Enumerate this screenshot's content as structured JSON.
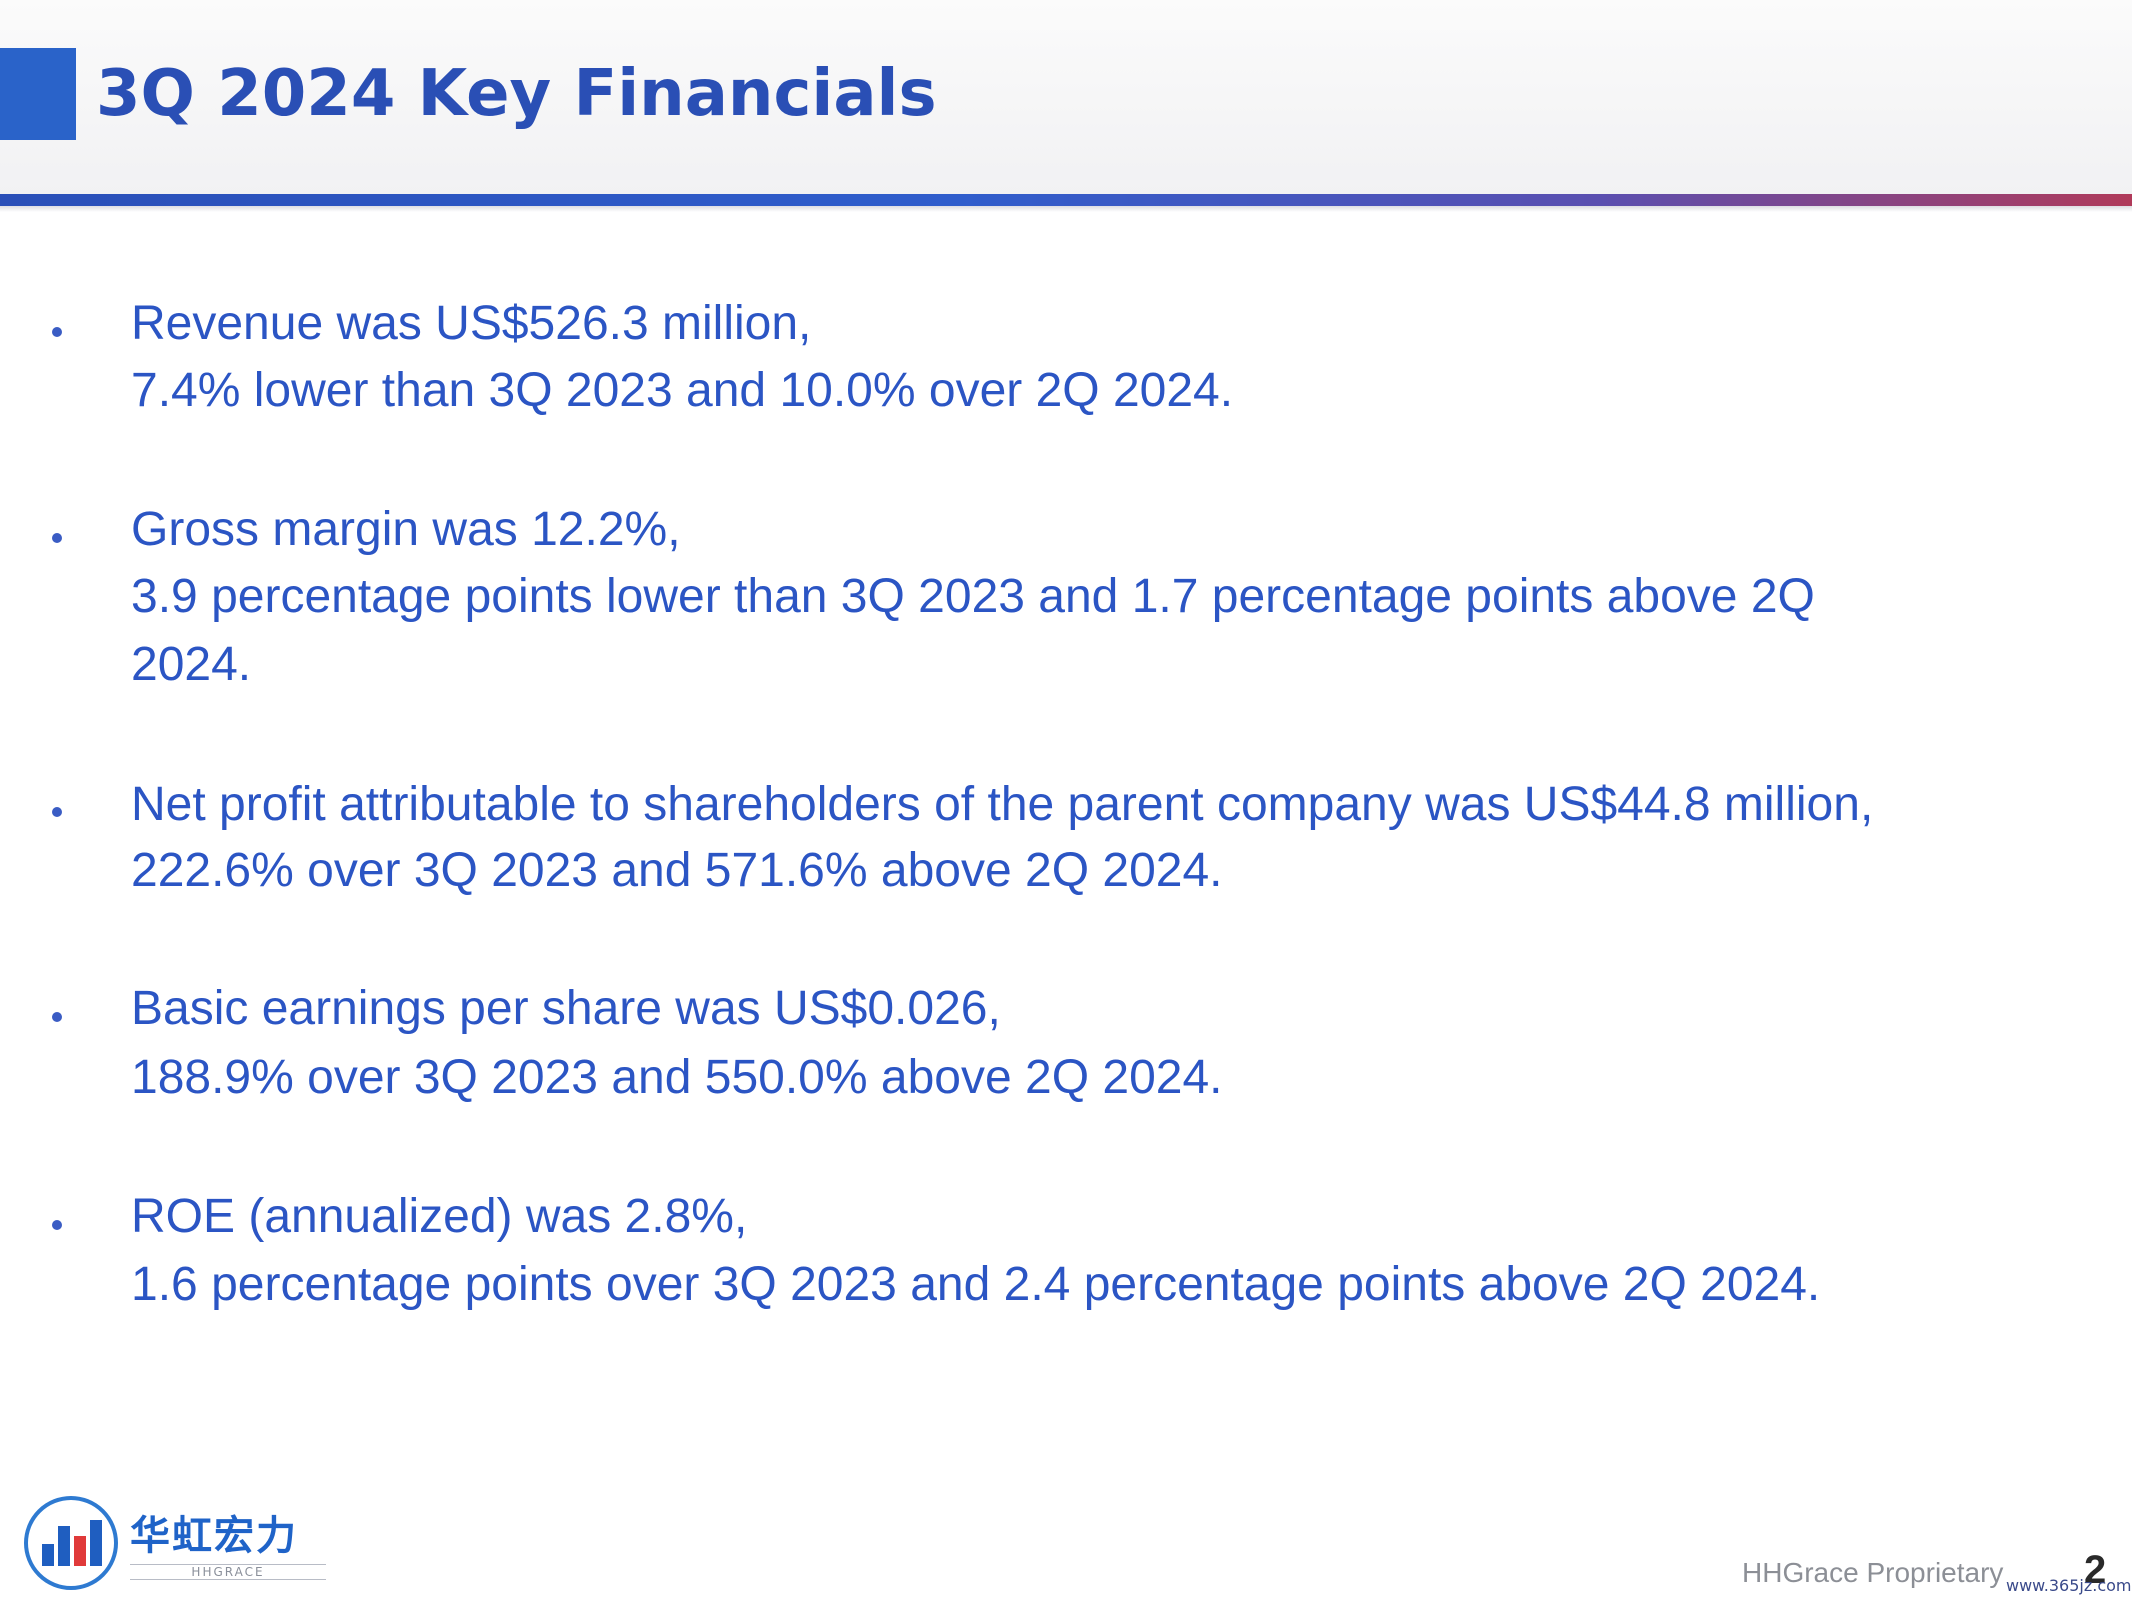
{
  "header": {
    "title": "3Q 2024 Key Financials"
  },
  "bullets": [
    {
      "lines": [
        "Revenue was US$526.3 million,",
        "7.4% lower than 3Q 2023 and 10.0% over 2Q 2024."
      ]
    },
    {
      "lines": [
        "Gross margin was 12.2%,",
        "3.9 percentage points lower than 3Q 2023 and 1.7 percentage points above 2Q",
        "2024."
      ]
    },
    {
      "lines": [
        "Net profit attributable to shareholders of the parent company was US$44.8 million,",
        "222.6% over 3Q 2023 and 571.6% above 2Q 2024."
      ]
    },
    {
      "lines": [
        "Basic earnings per share was US$0.026,",
        "188.9% over 3Q 2023 and 550.0% above 2Q 2024."
      ]
    },
    {
      "lines": [
        "ROE (annualized) was 2.8%,",
        "1.6 percentage points over 3Q 2023 and 2.4 percentage points above 2Q 2024."
      ]
    }
  ],
  "footer": {
    "logo_cn": "华虹宏力",
    "logo_en": "HHGRACE",
    "proprietary": "HHGrace Proprietary",
    "page_number": "2",
    "watermark": "www.365jz.com"
  },
  "colors": {
    "accent": "#2a63c9",
    "title": "#2a4fb5",
    "body_text": "#2b55c4"
  }
}
